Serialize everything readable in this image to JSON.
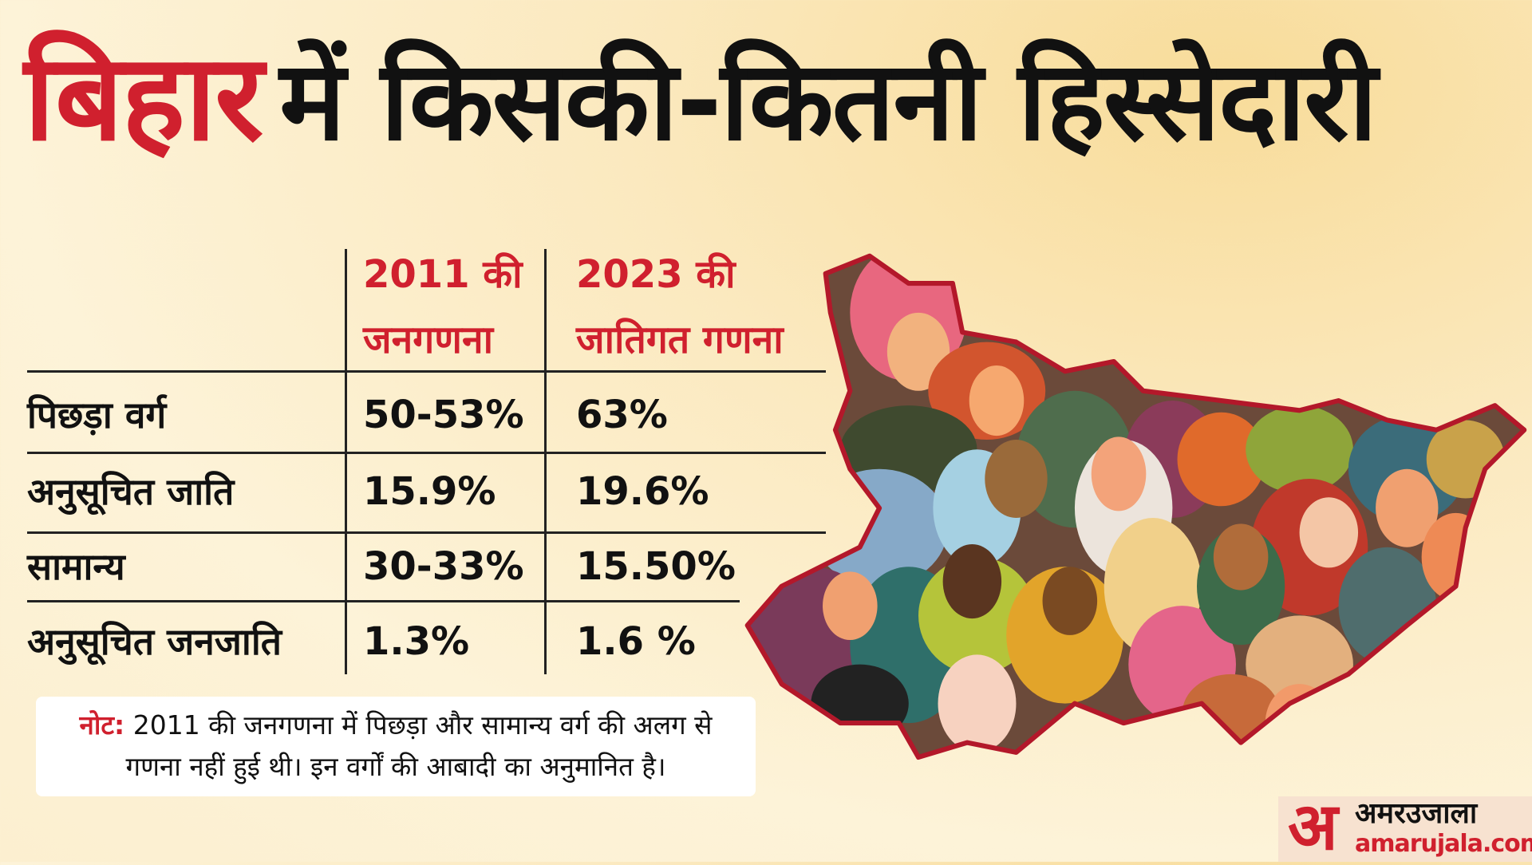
{
  "title": {
    "highlight": "बिहार",
    "rest": "में किसकी-कितनी हिस्सेदारी"
  },
  "table": {
    "columns": [
      {
        "line1": "2011 की",
        "line2": "जनगणना"
      },
      {
        "line1": "2023 की",
        "line2": "जातिगत गणना"
      }
    ],
    "rows": [
      {
        "category": "पिछड़ा वर्ग",
        "y2011": "50-53%",
        "y2023": "63%"
      },
      {
        "category": "अनुसूचित जाति",
        "y2011": "15.9%",
        "y2023": "19.6%"
      },
      {
        "category": "सामान्य",
        "y2011": "30-33%",
        "y2023": "15.50%"
      },
      {
        "category": "अनुसूचित जनजाति",
        "y2011": "1.3%",
        "y2023": "1.6 %"
      }
    ]
  },
  "note": {
    "label": "नोट:",
    "text": "2011 की जनगणना में पिछड़ा और सामान्य वर्ग की अलग से गणना नहीं हुई थी। इन वर्गों की आबादी का अनुमानित है।"
  },
  "logo": {
    "mark": "अ",
    "name_hi": "अमरउजाला",
    "site": "amarujala.com"
  },
  "colors": {
    "accent": "#d0202e",
    "map_border": "#b3182a"
  }
}
